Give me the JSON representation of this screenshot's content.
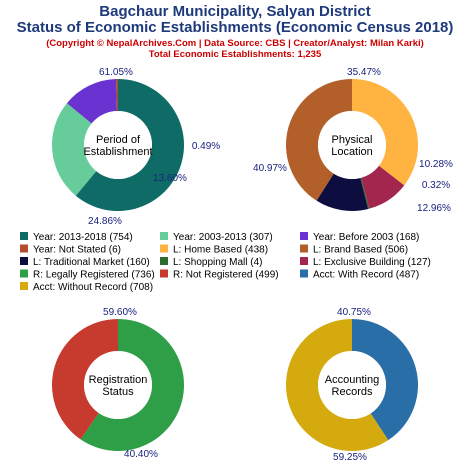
{
  "header": {
    "title_line1": "Bagchaur Municipality, Salyan District",
    "title_line2": "Status of Economic Establishments (Economic Census 2018)",
    "copyright": "(Copyright © NepalArchives.Com | Data Source: CBS | Creator/Analyst: Milan Karki)",
    "total": "Total Economic Establishments: 1,235"
  },
  "chart_data": [
    {
      "type": "pie",
      "title": "Period of Establishment",
      "center_label": [
        "Period of",
        "Establishment"
      ],
      "slices": [
        {
          "label": "Year: 2013-2018",
          "value": 754,
          "percent_label": "61.05%",
          "color": "#0f6b66"
        },
        {
          "label": "Year: 2003-2013",
          "value": 307,
          "percent_label": "24.86%",
          "color": "#66cc99"
        },
        {
          "label": "Year: Before 2003",
          "value": 168,
          "percent_label": "13.60%",
          "color": "#6a32d1"
        },
        {
          "label": "Year: Not Stated",
          "value": 6,
          "percent_label": "0.49%",
          "color": "#b34b2e"
        }
      ]
    },
    {
      "type": "pie",
      "title": "Physical Location",
      "center_label": [
        "Physical",
        "Location"
      ],
      "slices": [
        {
          "label": "L: Home Based",
          "value": 438,
          "percent_label": "35.47%",
          "color": "#ffb340"
        },
        {
          "label": "L: Exclusive Building",
          "value": 127,
          "percent_label": "10.28%",
          "color": "#a3264f"
        },
        {
          "label": "L: Shopping Mall",
          "value": 4,
          "percent_label": "0.32%",
          "color": "#2e6b2e"
        },
        {
          "label": "L: Traditional Market",
          "value": 160,
          "percent_label": "12.96%",
          "color": "#0d0d40"
        },
        {
          "label": "L: Brand Based",
          "value": 506,
          "percent_label": "40.97%",
          "color": "#b35f2a"
        }
      ]
    },
    {
      "type": "pie",
      "title": "Registration Status",
      "center_label": [
        "Registration",
        "Status"
      ],
      "slices": [
        {
          "label": "R: Legally Registered",
          "value": 736,
          "percent_label": "59.60%",
          "color": "#2e9e47"
        },
        {
          "label": "R: Not Registered",
          "value": 499,
          "percent_label": "40.40%",
          "color": "#c73a2e"
        }
      ]
    },
    {
      "type": "pie",
      "title": "Accounting Records",
      "center_label": [
        "Accounting",
        "Records"
      ],
      "slices": [
        {
          "label": "Acct: With Record",
          "value": 487,
          "percent_label": "40.75%",
          "color": "#2a6ea8"
        },
        {
          "label": "Acct: Without Record",
          "value": 708,
          "percent_label": "59.25%",
          "color": "#d4aa0f"
        }
      ]
    }
  ],
  "legend": [
    {
      "text": "Year: 2013-2018 (754)",
      "color": "#0f6b66"
    },
    {
      "text": "Year: 2003-2013 (307)",
      "color": "#66cc99"
    },
    {
      "text": "Year: Before 2003 (168)",
      "color": "#6a32d1"
    },
    {
      "text": "Year: Not Stated (6)",
      "color": "#b34b2e"
    },
    {
      "text": "L: Home Based (438)",
      "color": "#ffb340"
    },
    {
      "text": "L: Brand Based (506)",
      "color": "#b35f2a"
    },
    {
      "text": "L: Traditional Market (160)",
      "color": "#0d0d40"
    },
    {
      "text": "L: Shopping Mall (4)",
      "color": "#2e6b2e"
    },
    {
      "text": "L: Exclusive Building (127)",
      "color": "#a3264f"
    },
    {
      "text": "R: Legally Registered (736)",
      "color": "#2e9e47"
    },
    {
      "text": "R: Not Registered (499)",
      "color": "#c73a2e"
    },
    {
      "text": "Acct: With Record (487)",
      "color": "#2a6ea8"
    },
    {
      "text": "Acct: Without Record (708)",
      "color": "#d4aa0f"
    }
  ]
}
